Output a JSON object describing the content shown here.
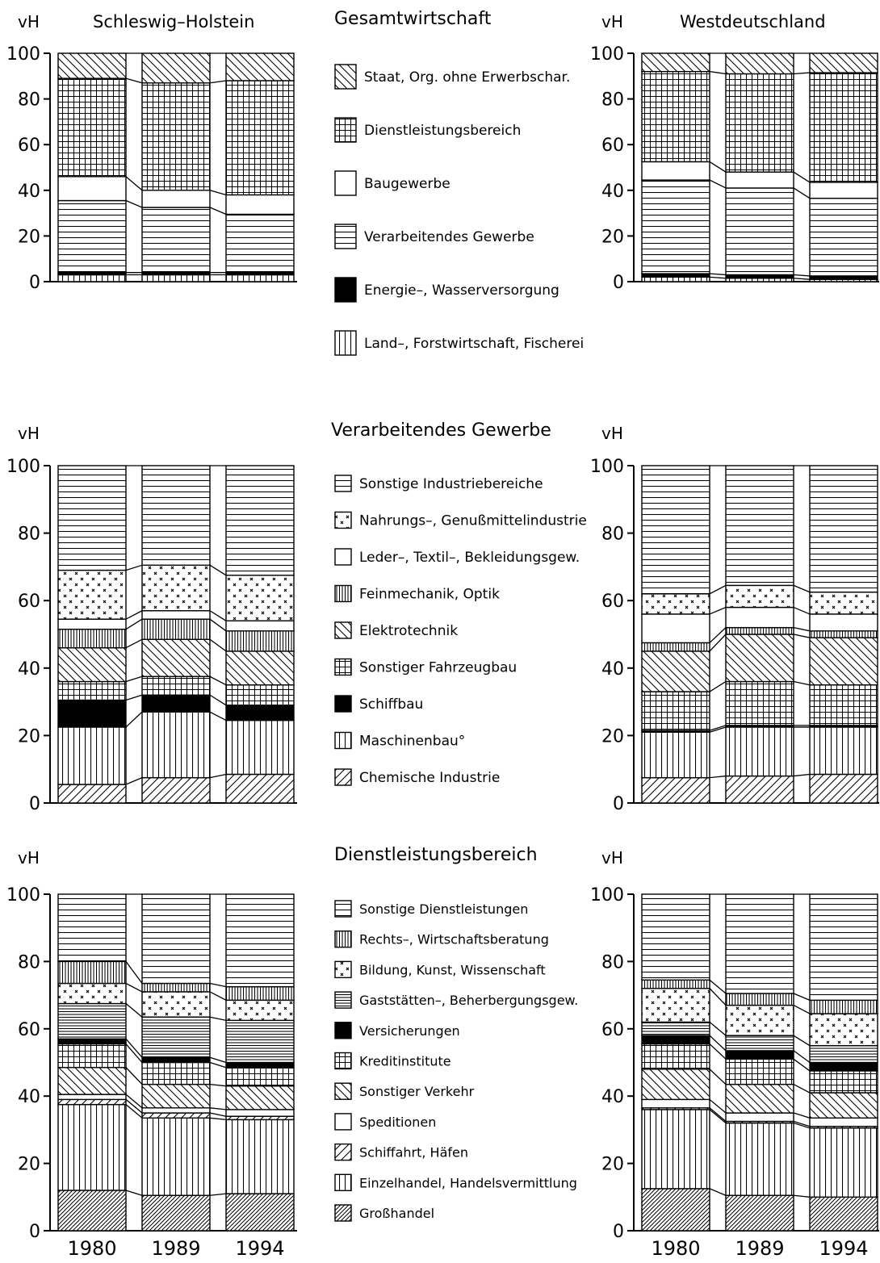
{
  "labels": {
    "left_region": "Schleswig–Holstein",
    "right_region": "Westdeutschland",
    "unit": "vH"
  },
  "chart_data": [
    {
      "type": "bar",
      "stacked": true,
      "title": "Gesamtwirtschaft",
      "ylabel": "vH",
      "ylim": [
        0,
        100
      ],
      "yticks": [
        0,
        20,
        40,
        60,
        80,
        100
      ],
      "categories": [
        "1980",
        "1989",
        "1994"
      ],
      "legend": [
        {
          "name": "Staat, Org. ohne Erwerbschar.",
          "pattern": "diag-back"
        },
        {
          "name": "Dienstleistungsbereich",
          "pattern": "grid"
        },
        {
          "name": "Baugewerbe",
          "pattern": "blank"
        },
        {
          "name": "Verarbeitendes Gewerbe",
          "pattern": "horiz"
        },
        {
          "name": "Energie–, Wasserversorgung",
          "pattern": "solid"
        },
        {
          "name": "Land–, Forstwirtschaft, Fischerei",
          "pattern": "vert"
        }
      ],
      "panels": [
        {
          "region": "Schleswig–Holstein",
          "series": [
            {
              "name": "Land–, Forstwirtschaft, Fischerei",
              "pattern": "vert",
              "values": [
                3,
                3,
                3
              ]
            },
            {
              "name": "Energie–, Wasserversorgung",
              "pattern": "solid",
              "values": [
                1,
                1,
                1
              ]
            },
            {
              "name": "Verarbeitendes Gewerbe",
              "pattern": "horiz",
              "values": [
                31.5,
                28.5,
                25.5
              ]
            },
            {
              "name": "Baugewerbe",
              "pattern": "blank",
              "values": [
                10.5,
                7.5,
                8.5
              ]
            },
            {
              "name": "Dienstleistungsbereich",
              "pattern": "grid",
              "values": [
                43,
                47,
                50
              ]
            },
            {
              "name": "Staat, Org. ohne Erwerbschar.",
              "pattern": "diag-back",
              "values": [
                11,
                13,
                12
              ]
            }
          ]
        },
        {
          "region": "Westdeutschland",
          "series": [
            {
              "name": "Land–, Forstwirtschaft, Fischerei",
              "pattern": "vert",
              "values": [
                2,
                1.5,
                1
              ]
            },
            {
              "name": "Energie–, Wasserversorgung",
              "pattern": "solid",
              "values": [
                1.5,
                1.5,
                1.5
              ]
            },
            {
              "name": "Verarbeitendes Gewerbe",
              "pattern": "horiz",
              "values": [
                41,
                38,
                34
              ]
            },
            {
              "name": "Baugewerbe",
              "pattern": "blank",
              "values": [
                8,
                7,
                7
              ]
            },
            {
              "name": "Dienstleistungsbereich",
              "pattern": "grid",
              "values": [
                39.5,
                43,
                48
              ]
            },
            {
              "name": "Staat, Org. ohne Erwerbschar.",
              "pattern": "diag-back",
              "values": [
                8,
                9,
                8.5
              ]
            }
          ]
        }
      ]
    },
    {
      "type": "bar",
      "stacked": true,
      "title": "Verarbeitendes Gewerbe",
      "ylabel": "vH",
      "ylim": [
        0,
        100
      ],
      "yticks": [
        0,
        20,
        40,
        60,
        80,
        100
      ],
      "categories": [
        "1980",
        "1989",
        "1994"
      ],
      "legend": [
        {
          "name": "Sonstige Industriebereiche",
          "pattern": "horiz"
        },
        {
          "name": "Nahrungs–, Genußmittelindustrie",
          "pattern": "dots"
        },
        {
          "name": "Leder–, Textil–, Bekleidungsgew.",
          "pattern": "blank"
        },
        {
          "name": "Feinmechanik, Optik",
          "pattern": "vert-dense"
        },
        {
          "name": "Elektrotechnik",
          "pattern": "diag-back"
        },
        {
          "name": "Sonstiger Fahrzeugbau",
          "pattern": "grid"
        },
        {
          "name": "Schiffbau",
          "pattern": "solid"
        },
        {
          "name": "Maschinenbau°",
          "pattern": "vert"
        },
        {
          "name": "Chemische Industrie",
          "pattern": "diag-fwd"
        }
      ],
      "panels": [
        {
          "region": "Schleswig–Holstein",
          "series": [
            {
              "name": "Chemische Industrie",
              "pattern": "diag-fwd",
              "values": [
                5.5,
                7.5,
                8.5
              ]
            },
            {
              "name": "Maschinenbau°",
              "pattern": "vert",
              "values": [
                17,
                19.5,
                16
              ]
            },
            {
              "name": "Schiffbau",
              "pattern": "solid",
              "values": [
                8,
                5,
                4.5
              ]
            },
            {
              "name": "Sonstiger Fahrzeugbau",
              "pattern": "grid",
              "values": [
                5.5,
                5.5,
                6
              ]
            },
            {
              "name": "Elektrotechnik",
              "pattern": "diag-back",
              "values": [
                10,
                11,
                10
              ]
            },
            {
              "name": "Feinmechanik, Optik",
              "pattern": "vert-dense",
              "values": [
                5.5,
                6,
                6
              ]
            },
            {
              "name": "Leder–, Textil–, Bekleidungsgew.",
              "pattern": "blank",
              "values": [
                3,
                2.5,
                3
              ]
            },
            {
              "name": "Nahrungs–, Genußmittelindustrie",
              "pattern": "dots",
              "values": [
                14.5,
                13.5,
                13.5
              ]
            },
            {
              "name": "Sonstige Industriebereiche",
              "pattern": "horiz",
              "values": [
                31,
                29.5,
                32.5
              ]
            }
          ]
        },
        {
          "region": "Westdeutschland",
          "series": [
            {
              "name": "Chemische Industrie",
              "pattern": "diag-fwd",
              "values": [
                7.5,
                8,
                8.5
              ]
            },
            {
              "name": "Maschinenbau°",
              "pattern": "vert",
              "values": [
                13.5,
                14.5,
                14
              ]
            },
            {
              "name": "Schiffbau",
              "pattern": "solid",
              "values": [
                0.5,
                0.5,
                0.5
              ]
            },
            {
              "name": "Sonstiger Fahrzeugbau",
              "pattern": "grid",
              "values": [
                11.5,
                13,
                12
              ]
            },
            {
              "name": "Elektrotechnik",
              "pattern": "diag-back",
              "values": [
                12,
                14,
                14
              ]
            },
            {
              "name": "Feinmechanik, Optik",
              "pattern": "vert-dense",
              "values": [
                2.5,
                2,
                2
              ]
            },
            {
              "name": "Leder–, Textil–, Bekleidungsgew.",
              "pattern": "blank",
              "values": [
                8.5,
                6,
                5
              ]
            },
            {
              "name": "Nahrungs–, Genußmittelindustrie",
              "pattern": "dots",
              "values": [
                6,
                6.5,
                6.5
              ]
            },
            {
              "name": "Sonstige Industriebereiche",
              "pattern": "horiz",
              "values": [
                38,
                35.5,
                37.5
              ]
            }
          ]
        }
      ]
    },
    {
      "type": "bar",
      "stacked": true,
      "title": "Dienstleistungsbereich",
      "ylabel": "vH",
      "ylim": [
        0,
        100
      ],
      "yticks": [
        0,
        20,
        40,
        60,
        80,
        100
      ],
      "categories": [
        "1980",
        "1989",
        "1994"
      ],
      "legend": [
        {
          "name": "Sonstige Dienstleistungen",
          "pattern": "horiz"
        },
        {
          "name": "Rechts–, Wirtschaftsberatung",
          "pattern": "vert-dense"
        },
        {
          "name": "Bildung, Kunst, Wissenschaft",
          "pattern": "dots"
        },
        {
          "name": "Gaststätten–, Beherbergungsgew.",
          "pattern": "horiz-dense"
        },
        {
          "name": "Versicherungen",
          "pattern": "solid"
        },
        {
          "name": "Kreditinstitute",
          "pattern": "grid"
        },
        {
          "name": "Sonstiger Verkehr",
          "pattern": "diag-back"
        },
        {
          "name": "Speditionen",
          "pattern": "blank"
        },
        {
          "name": "Schiffahrt, Häfen",
          "pattern": "diag-fwd"
        },
        {
          "name": "Einzelhandel, Handelsvermittlung",
          "pattern": "vert"
        },
        {
          "name": "Großhandel",
          "pattern": "diag-fwd-dense"
        }
      ],
      "panels": [
        {
          "region": "Schleswig–Holstein",
          "series": [
            {
              "name": "Großhandel",
              "pattern": "diag-fwd-dense",
              "values": [
                12,
                10.5,
                11
              ]
            },
            {
              "name": "Einzelhandel, Handelsvermittlung",
              "pattern": "vert",
              "values": [
                25.5,
                23,
                22
              ]
            },
            {
              "name": "Schiffahrt, Häfen",
              "pattern": "diag-fwd",
              "values": [
                1.5,
                1.5,
                1
              ]
            },
            {
              "name": "Speditionen",
              "pattern": "blank",
              "values": [
                1.5,
                1.5,
                2
              ]
            },
            {
              "name": "Sonstiger Verkehr",
              "pattern": "diag-back",
              "values": [
                8,
                7,
                7
              ]
            },
            {
              "name": "Kreditinstitute",
              "pattern": "grid",
              "values": [
                7,
                6.5,
                5.5
              ]
            },
            {
              "name": "Versicherungen",
              "pattern": "solid",
              "values": [
                1.5,
                1.5,
                1.5
              ]
            },
            {
              "name": "Gaststätten–, Beherbergungsgew.",
              "pattern": "horiz-dense",
              "values": [
                10.5,
                12,
                12.5
              ]
            },
            {
              "name": "Bildung, Kunst, Wissenschaft",
              "pattern": "dots",
              "values": [
                6,
                7.5,
                6
              ]
            },
            {
              "name": "Rechts–, Wirtschaftsberatung",
              "pattern": "vert-dense",
              "values": [
                6.5,
                2.5,
                4
              ]
            },
            {
              "name": "Sonstige Dienstleistungen",
              "pattern": "horiz",
              "values": [
                20,
                26.5,
                27.5
              ]
            }
          ]
        },
        {
          "region": "Westdeutschland",
          "series": [
            {
              "name": "Großhandel",
              "pattern": "diag-fwd-dense",
              "values": [
                12.5,
                10.5,
                10
              ]
            },
            {
              "name": "Einzelhandel, Handelsvermittlung",
              "pattern": "vert",
              "values": [
                23.5,
                21.5,
                20.5
              ]
            },
            {
              "name": "Schiffahrt, Häfen",
              "pattern": "diag-fwd",
              "values": [
                0.5,
                0.5,
                0.5
              ]
            },
            {
              "name": "Speditionen",
              "pattern": "blank",
              "values": [
                2.5,
                2.5,
                2.5
              ]
            },
            {
              "name": "Sonstiger Verkehr",
              "pattern": "diag-back",
              "values": [
                9,
                8.5,
                7.5
              ]
            },
            {
              "name": "Kreditinstitute",
              "pattern": "grid",
              "values": [
                7.5,
                7.5,
                6.5
              ]
            },
            {
              "name": "Versicherungen",
              "pattern": "solid",
              "values": [
                2.5,
                2.5,
                2.5
              ]
            },
            {
              "name": "Gaststätten–, Beherbergungsgew.",
              "pattern": "horiz-dense",
              "values": [
                4,
                4.5,
                5
              ]
            },
            {
              "name": "Bildung, Kunst, Wissenschaft",
              "pattern": "dots",
              "values": [
                10,
                9,
                9.5
              ]
            },
            {
              "name": "Rechts–, Wirtschaftsberatung",
              "pattern": "vert-dense",
              "values": [
                2.5,
                3.5,
                4
              ]
            },
            {
              "name": "Sonstige Dienstleistungen",
              "pattern": "horiz",
              "values": [
                25.5,
                29.5,
                31.5
              ]
            }
          ]
        }
      ]
    }
  ]
}
